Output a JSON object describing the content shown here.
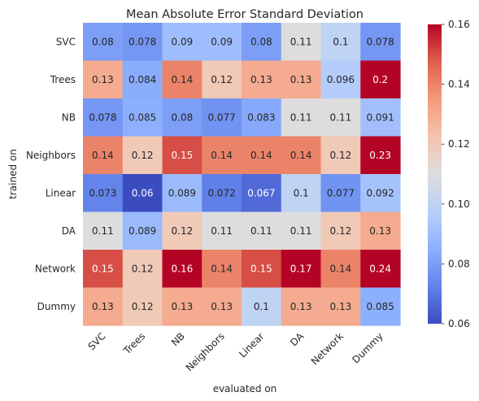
{
  "chart_data": {
    "type": "heatmap",
    "title": "Mean Absolute Error Standard Deviation",
    "xlabel": "evaluated on",
    "ylabel": "trained on",
    "x_categories": [
      "SVC",
      "Trees",
      "NB",
      "Neighbors",
      "Linear",
      "DA",
      "Network",
      "Dummy"
    ],
    "y_categories": [
      "SVC",
      "Trees",
      "NB",
      "Neighbors",
      "Linear",
      "DA",
      "Network",
      "Dummy"
    ],
    "values": [
      [
        0.08,
        0.078,
        0.09,
        0.09,
        0.08,
        0.11,
        0.1,
        0.078
      ],
      [
        0.13,
        0.084,
        0.14,
        0.12,
        0.13,
        0.13,
        0.096,
        0.2
      ],
      [
        0.078,
        0.085,
        0.08,
        0.077,
        0.083,
        0.11,
        0.11,
        0.091
      ],
      [
        0.14,
        0.12,
        0.15,
        0.14,
        0.14,
        0.14,
        0.12,
        0.23
      ],
      [
        0.073,
        0.06,
        0.089,
        0.072,
        0.067,
        0.1,
        0.077,
        0.092
      ],
      [
        0.11,
        0.089,
        0.12,
        0.11,
        0.11,
        0.11,
        0.12,
        0.13
      ],
      [
        0.15,
        0.12,
        0.16,
        0.14,
        0.15,
        0.17,
        0.14,
        0.24
      ],
      [
        0.13,
        0.12,
        0.13,
        0.13,
        0.1,
        0.13,
        0.13,
        0.085
      ]
    ],
    "value_labels": [
      [
        "0.08",
        "0.078",
        "0.09",
        "0.09",
        "0.08",
        "0.11",
        "0.1",
        "0.078"
      ],
      [
        "0.13",
        "0.084",
        "0.14",
        "0.12",
        "0.13",
        "0.13",
        "0.096",
        "0.2"
      ],
      [
        "0.078",
        "0.085",
        "0.08",
        "0.077",
        "0.083",
        "0.11",
        "0.11",
        "0.091"
      ],
      [
        "0.14",
        "0.12",
        "0.15",
        "0.14",
        "0.14",
        "0.14",
        "0.12",
        "0.23"
      ],
      [
        "0.073",
        "0.06",
        "0.089",
        "0.072",
        "0.067",
        "0.1",
        "0.077",
        "0.092"
      ],
      [
        "0.11",
        "0.089",
        "0.12",
        "0.11",
        "0.11",
        "0.11",
        "0.12",
        "0.13"
      ],
      [
        "0.15",
        "0.12",
        "0.16",
        "0.14",
        "0.15",
        "0.17",
        "0.14",
        "0.24"
      ],
      [
        "0.13",
        "0.12",
        "0.13",
        "0.13",
        "0.1",
        "0.13",
        "0.13",
        "0.085"
      ]
    ],
    "colormap": "coolwarm",
    "color_range": [
      0.06,
      0.16
    ],
    "colorbar_ticks": [
      "0.06",
      "0.08",
      "0.10",
      "0.12",
      "0.14",
      "0.16"
    ],
    "colorbar_tick_values": [
      0.06,
      0.08,
      0.1,
      0.12,
      0.14,
      0.16
    ],
    "grid": false,
    "legend": "colorbar-right"
  }
}
